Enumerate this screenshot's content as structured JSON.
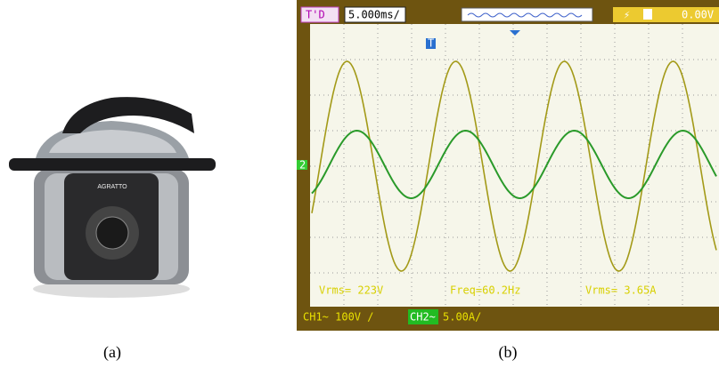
{
  "figure": {
    "panel_a": {
      "brand": "AGRATTO",
      "caption": "(a)"
    },
    "panel_b": {
      "caption": "(b)",
      "oscilloscope": {
        "mode": "T'D",
        "timebase": "5.000ms/",
        "trigger_marker": "T",
        "trigger_level": "0.00V",
        "ch2_marker": "2",
        "ch1_rms": "Vrms= 223V",
        "frequency": "Freq=60.2Hz",
        "ch2_rms": "Vrms= 3.65A",
        "ch1_scale": "CH1~ 100V /",
        "ch2_label": "CH2~",
        "ch2_scale": "5.00A/"
      }
    }
  }
}
